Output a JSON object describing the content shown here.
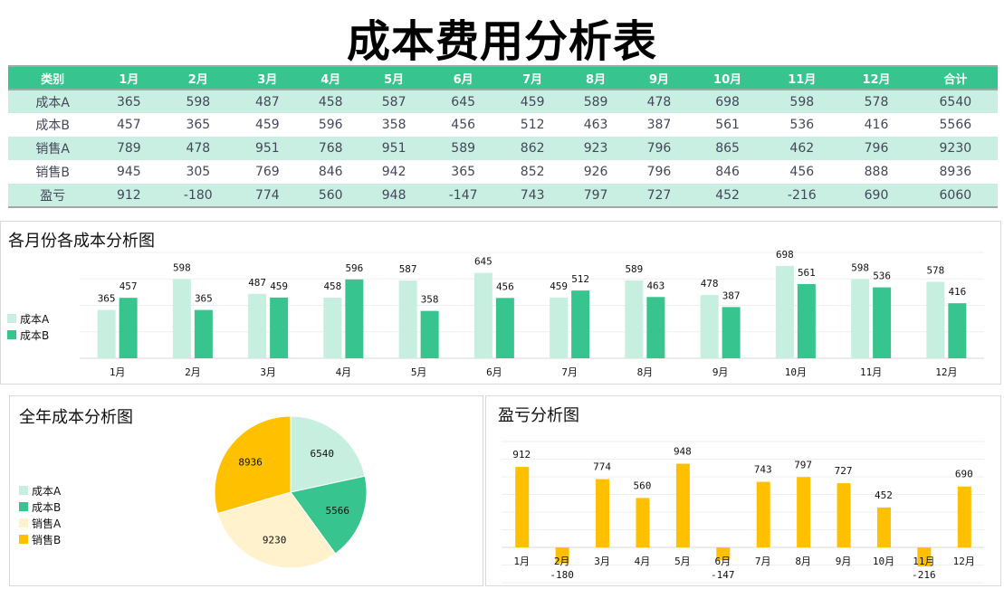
{
  "title": "成本费用分析表",
  "table": {
    "headers": [
      "类别",
      "1月",
      "2月",
      "3月",
      "4月",
      "5月",
      "6月",
      "7月",
      "8月",
      "9月",
      "10月",
      "11月",
      "12月",
      "合计"
    ],
    "rows": [
      [
        "成本A",
        "365",
        "598",
        "487",
        "458",
        "587",
        "645",
        "459",
        "589",
        "478",
        "698",
        "598",
        "578",
        "6540"
      ],
      [
        "成本B",
        "457",
        "365",
        "459",
        "596",
        "358",
        "456",
        "512",
        "463",
        "387",
        "561",
        "536",
        "416",
        "5566"
      ],
      [
        "销售A",
        "789",
        "478",
        "951",
        "768",
        "951",
        "589",
        "862",
        "923",
        "796",
        "865",
        "462",
        "796",
        "9230"
      ],
      [
        "销售B",
        "945",
        "305",
        "769",
        "846",
        "942",
        "365",
        "852",
        "926",
        "796",
        "846",
        "456",
        "888",
        "8936"
      ],
      [
        "盈亏",
        "912",
        "-180",
        "774",
        "560",
        "948",
        "-147",
        "743",
        "797",
        "727",
        "452",
        "-216",
        "690",
        "6060"
      ]
    ]
  },
  "colors": {
    "header": "#37c48f",
    "alt_row": "#c9efe2",
    "costA": "#c6efe0",
    "costB": "#37c48f",
    "salesA": "#fff2cc",
    "salesB": "#ffc000"
  },
  "chart_data": [
    {
      "type": "bar",
      "title": "各月份各成本分析图",
      "categories": [
        "1月",
        "2月",
        "3月",
        "4月",
        "5月",
        "6月",
        "7月",
        "8月",
        "9月",
        "10月",
        "11月",
        "12月"
      ],
      "series": [
        {
          "name": "成本A",
          "values": [
            365,
            598,
            487,
            458,
            587,
            645,
            459,
            589,
            478,
            698,
            598,
            578
          ]
        },
        {
          "name": "成本B",
          "values": [
            457,
            365,
            459,
            596,
            358,
            456,
            512,
            463,
            387,
            561,
            536,
            416
          ]
        }
      ],
      "ylim": [
        0,
        800
      ],
      "grid": true,
      "legend": "left"
    },
    {
      "type": "pie",
      "title": "全年成本分析图",
      "categories": [
        "成本A",
        "成本B",
        "销售A",
        "销售B"
      ],
      "values": [
        6540,
        5566,
        9230,
        8936
      ],
      "legend": "left"
    },
    {
      "type": "bar",
      "title": "盈亏分析图",
      "categories": [
        "1月",
        "2月",
        "3月",
        "4月",
        "5月",
        "6月",
        "7月",
        "8月",
        "9月",
        "10月",
        "11月",
        "12月"
      ],
      "values": [
        912,
        -180,
        774,
        560,
        948,
        -147,
        743,
        797,
        727,
        452,
        -216,
        690
      ],
      "ylim": [
        -400,
        1200
      ],
      "grid": true
    }
  ]
}
